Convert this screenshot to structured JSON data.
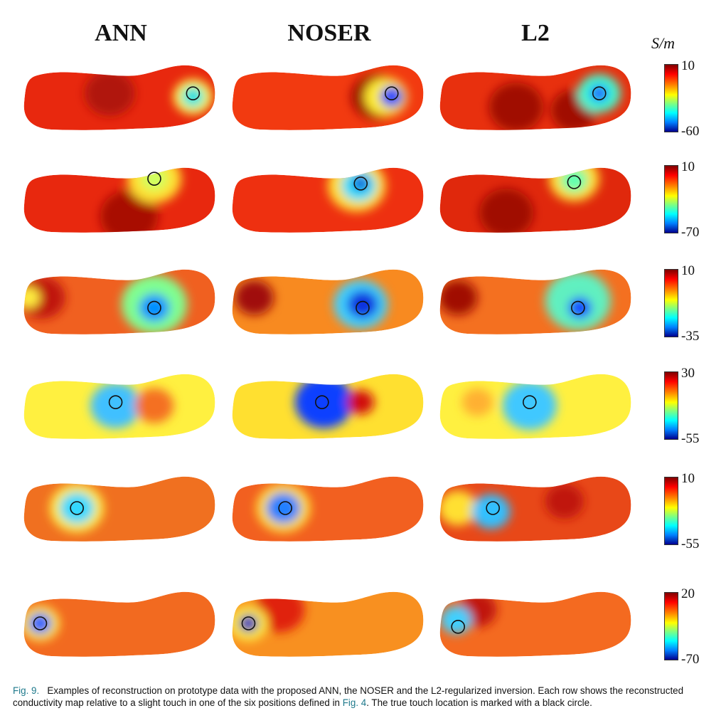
{
  "columns": [
    "ANN",
    "NOSER",
    "L2"
  ],
  "unit": "S/m",
  "rows": [
    {
      "cmax": "10",
      "cmin": "-60",
      "cells": [
        {
          "bg": "#e8280e",
          "spots": [
            {
              "fx": 0.45,
              "fy": 0.45,
              "c": "#b01208",
              "r": 0.13
            },
            {
              "fx": 0.88,
              "fy": 0.5,
              "c": "#ffff40",
              "r": 0.1
            },
            {
              "fx": 0.88,
              "fy": 0.5,
              "c": "#20e0e0",
              "r": 0.06
            }
          ],
          "touch": {
            "fx": 0.88,
            "fy": 0.45
          }
        },
        {
          "bg": "#f23a10",
          "spots": [
            {
              "fx": 0.75,
              "fy": 0.5,
              "c": "#9a0a05",
              "r": 0.13
            },
            {
              "fx": 0.8,
              "fy": 0.5,
              "c": "#ffee30",
              "r": 0.11
            },
            {
              "fx": 0.83,
              "fy": 0.5,
              "c": "#1040ff",
              "r": 0.06
            }
          ],
          "touch": {
            "fx": 0.83,
            "fy": 0.45
          }
        },
        {
          "bg": "#e8300e",
          "spots": [
            {
              "fx": 0.4,
              "fy": 0.65,
              "c": "#a00a05",
              "r": 0.14
            },
            {
              "fx": 0.7,
              "fy": 0.7,
              "c": "#a00a05",
              "r": 0.12
            },
            {
              "fx": 0.83,
              "fy": 0.45,
              "c": "#40ffd0",
              "r": 0.11
            },
            {
              "fx": 0.83,
              "fy": 0.45,
              "c": "#2060ff",
              "r": 0.05
            }
          ],
          "touch": {
            "fx": 0.83,
            "fy": 0.45
          }
        }
      ]
    },
    {
      "cmax": "10",
      "cmin": "-70",
      "cells": [
        {
          "bg": "#e8280e",
          "spots": [
            {
              "fx": 0.55,
              "fy": 0.75,
              "c": "#a80a06",
              "r": 0.15
            },
            {
              "fx": 0.68,
              "fy": 0.2,
              "c": "#ffe030",
              "r": 0.14
            },
            {
              "fx": 0.68,
              "fy": 0.2,
              "c": "#d0ff60",
              "r": 0.07
            }
          ],
          "touch": {
            "fx": 0.68,
            "fy": 0.2
          }
        },
        {
          "bg": "#ee3010",
          "spots": [
            {
              "fx": 0.65,
              "fy": 0.3,
              "c": "#ffe030",
              "r": 0.15
            },
            {
              "fx": 0.66,
              "fy": 0.3,
              "c": "#30e0ff",
              "r": 0.09
            },
            {
              "fx": 0.67,
              "fy": 0.27,
              "c": "#1020d0",
              "r": 0.04
            }
          ],
          "touch": {
            "fx": 0.67,
            "fy": 0.27
          }
        },
        {
          "bg": "#e0280c",
          "spots": [
            {
              "fx": 0.35,
              "fy": 0.7,
              "c": "#a00a05",
              "r": 0.14
            },
            {
              "fx": 0.7,
              "fy": 0.2,
              "c": "#ffe030",
              "r": 0.13
            },
            {
              "fx": 0.7,
              "fy": 0.22,
              "c": "#60ffb0",
              "r": 0.07
            }
          ],
          "touch": {
            "fx": 0.7,
            "fy": 0.25
          }
        }
      ]
    },
    {
      "cmax": "10",
      "cmin": "-35",
      "cells": [
        {
          "bg": "#f06020",
          "spots": [
            {
              "fx": 0.1,
              "fy": 0.45,
              "c": "#c01810",
              "r": 0.12
            },
            {
              "fx": 0.03,
              "fy": 0.45,
              "c": "#ffee40",
              "r": 0.06
            },
            {
              "fx": 0.68,
              "fy": 0.55,
              "c": "#80ff90",
              "r": 0.17
            },
            {
              "fx": 0.68,
              "fy": 0.6,
              "c": "#0090ff",
              "r": 0.08
            }
          ],
          "touch": {
            "fx": 0.68,
            "fy": 0.6
          }
        },
        {
          "bg": "#f88a20",
          "spots": [
            {
              "fx": 0.12,
              "fy": 0.45,
              "c": "#a01008",
              "r": 0.1
            },
            {
              "fx": 0.67,
              "fy": 0.55,
              "c": "#40d0ff",
              "r": 0.14
            },
            {
              "fx": 0.68,
              "fy": 0.55,
              "c": "#1030e0",
              "r": 0.08
            }
          ],
          "touch": {
            "fx": 0.68,
            "fy": 0.6
          }
        },
        {
          "bg": "#f47020",
          "spots": [
            {
              "fx": 0.1,
              "fy": 0.45,
              "c": "#a00a05",
              "r": 0.1
            },
            {
              "fx": 0.72,
              "fy": 0.5,
              "c": "#60f0c0",
              "r": 0.17
            },
            {
              "fx": 0.73,
              "fy": 0.6,
              "c": "#1040ff",
              "r": 0.06
            }
          ],
          "touch": {
            "fx": 0.72,
            "fy": 0.6
          }
        }
      ]
    },
    {
      "cmax": "30",
      "cmin": "-55",
      "cells": [
        {
          "bg": "#fff040",
          "spots": [
            {
              "fx": 0.48,
              "fy": 0.5,
              "c": "#40c0ff",
              "r": 0.13
            },
            {
              "fx": 0.68,
              "fy": 0.5,
              "c": "#f47020",
              "r": 0.1
            }
          ],
          "touch": {
            "fx": 0.48,
            "fy": 0.45
          }
        },
        {
          "bg": "#ffe030",
          "spots": [
            {
              "fx": 0.48,
              "fy": 0.45,
              "c": "#1040ff",
              "r": 0.15
            },
            {
              "fx": 0.67,
              "fy": 0.45,
              "c": "#d01010",
              "r": 0.07
            }
          ],
          "touch": {
            "fx": 0.47,
            "fy": 0.45
          }
        },
        {
          "bg": "#fff040",
          "spots": [
            {
              "fx": 0.47,
              "fy": 0.5,
              "c": "#40c8ff",
              "r": 0.14
            },
            {
              "fx": 0.2,
              "fy": 0.45,
              "c": "#ffb030",
              "r": 0.08
            }
          ],
          "touch": {
            "fx": 0.47,
            "fy": 0.45
          }
        }
      ]
    },
    {
      "cmax": "10",
      "cmin": "-55",
      "cells": [
        {
          "bg": "#f07020",
          "spots": [
            {
              "fx": 0.28,
              "fy": 0.5,
              "c": "#ffee40",
              "r": 0.14
            },
            {
              "fx": 0.28,
              "fy": 0.5,
              "c": "#30d8ff",
              "r": 0.09
            }
          ],
          "touch": {
            "fx": 0.28,
            "fy": 0.5
          }
        },
        {
          "bg": "#f26020",
          "spots": [
            {
              "fx": 0.27,
              "fy": 0.5,
              "c": "#ffe030",
              "r": 0.14
            },
            {
              "fx": 0.27,
              "fy": 0.5,
              "c": "#2080ff",
              "r": 0.09
            }
          ],
          "touch": {
            "fx": 0.28,
            "fy": 0.5
          }
        },
        {
          "bg": "#e84818",
          "spots": [
            {
              "fx": 0.1,
              "fy": 0.5,
              "c": "#ffe030",
              "r": 0.1
            },
            {
              "fx": 0.27,
              "fy": 0.55,
              "c": "#30c0ff",
              "r": 0.1
            },
            {
              "fx": 0.65,
              "fy": 0.4,
              "c": "#c01810",
              "r": 0.1
            }
          ],
          "touch": {
            "fx": 0.28,
            "fy": 0.5
          }
        }
      ]
    },
    {
      "cmax": "20",
      "cmin": "-70",
      "cells": [
        {
          "bg": "#f26a20",
          "spots": [
            {
              "fx": 0.09,
              "fy": 0.5,
              "c": "#ffee40",
              "r": 0.1
            },
            {
              "fx": 0.09,
              "fy": 0.5,
              "c": "#2060ff",
              "r": 0.06
            }
          ],
          "touch": {
            "fx": 0.09,
            "fy": 0.5
          }
        },
        {
          "bg": "#f89020",
          "spots": [
            {
              "fx": 0.25,
              "fy": 0.3,
              "c": "#e02010",
              "r": 0.13
            },
            {
              "fx": 0.09,
              "fy": 0.5,
              "c": "#ffee40",
              "r": 0.1
            },
            {
              "fx": 0.09,
              "fy": 0.5,
              "c": "#0010c0",
              "r": 0.05
            }
          ],
          "touch": {
            "fx": 0.09,
            "fy": 0.5
          }
        },
        {
          "bg": "#f46a20",
          "spots": [
            {
              "fx": 0.2,
              "fy": 0.3,
              "c": "#c01810",
              "r": 0.1
            },
            {
              "fx": 0.09,
              "fy": 0.45,
              "c": "#40d0ff",
              "r": 0.08
            }
          ],
          "touch": {
            "fx": 0.1,
            "fy": 0.55
          }
        }
      ]
    }
  ],
  "caption": {
    "label": "Fig. 9.",
    "text1": "Examples of reconstruction on prototype data with the proposed ANN, the NOSER and the L2-regularized inversion. Each row shows the reconstructed conductivity map relative to a slight touch in one of the six positions defined in ",
    "ref": "Fig. 4",
    "text2": ". The true touch location is marked with a black circle."
  }
}
